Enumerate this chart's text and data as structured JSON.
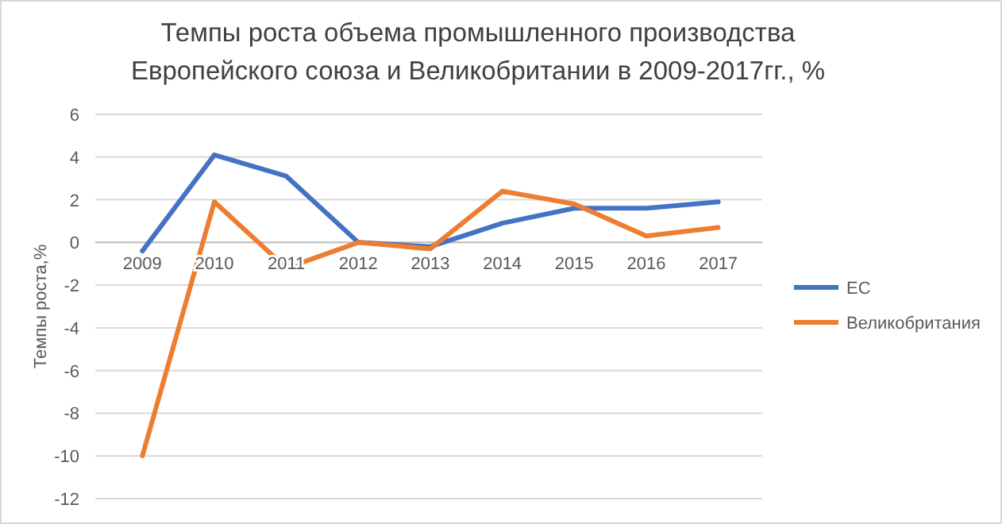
{
  "chart_data": {
    "type": "line",
    "title": "Темпы роста объема промышленного производства Европейского союза и Великобритании в 2009-2017гг., %",
    "ylabel": "Темпы роста,%",
    "categories": [
      "2009",
      "2010",
      "2011",
      "2012",
      "2013",
      "2014",
      "2015",
      "2016",
      "2017"
    ],
    "series": [
      {
        "name": "ЕС",
        "color": "#4472c4",
        "values": [
          -0.4,
          4.1,
          3.1,
          0,
          -0.2,
          0.9,
          1.6,
          1.6,
          1.9
        ]
      },
      {
        "name": "Великобритания",
        "color": "#ed7d31",
        "values": [
          -10,
          1.9,
          -1.2,
          0,
          -0.3,
          2.4,
          1.8,
          0.3,
          0.7
        ]
      }
    ],
    "ylim": [
      -12,
      6
    ],
    "yticks": [
      -12,
      -10,
      -8,
      -6,
      -4,
      -2,
      0,
      2,
      4,
      6
    ],
    "grid": "y",
    "legend": "right",
    "marker": "none",
    "line_style": "solid"
  }
}
